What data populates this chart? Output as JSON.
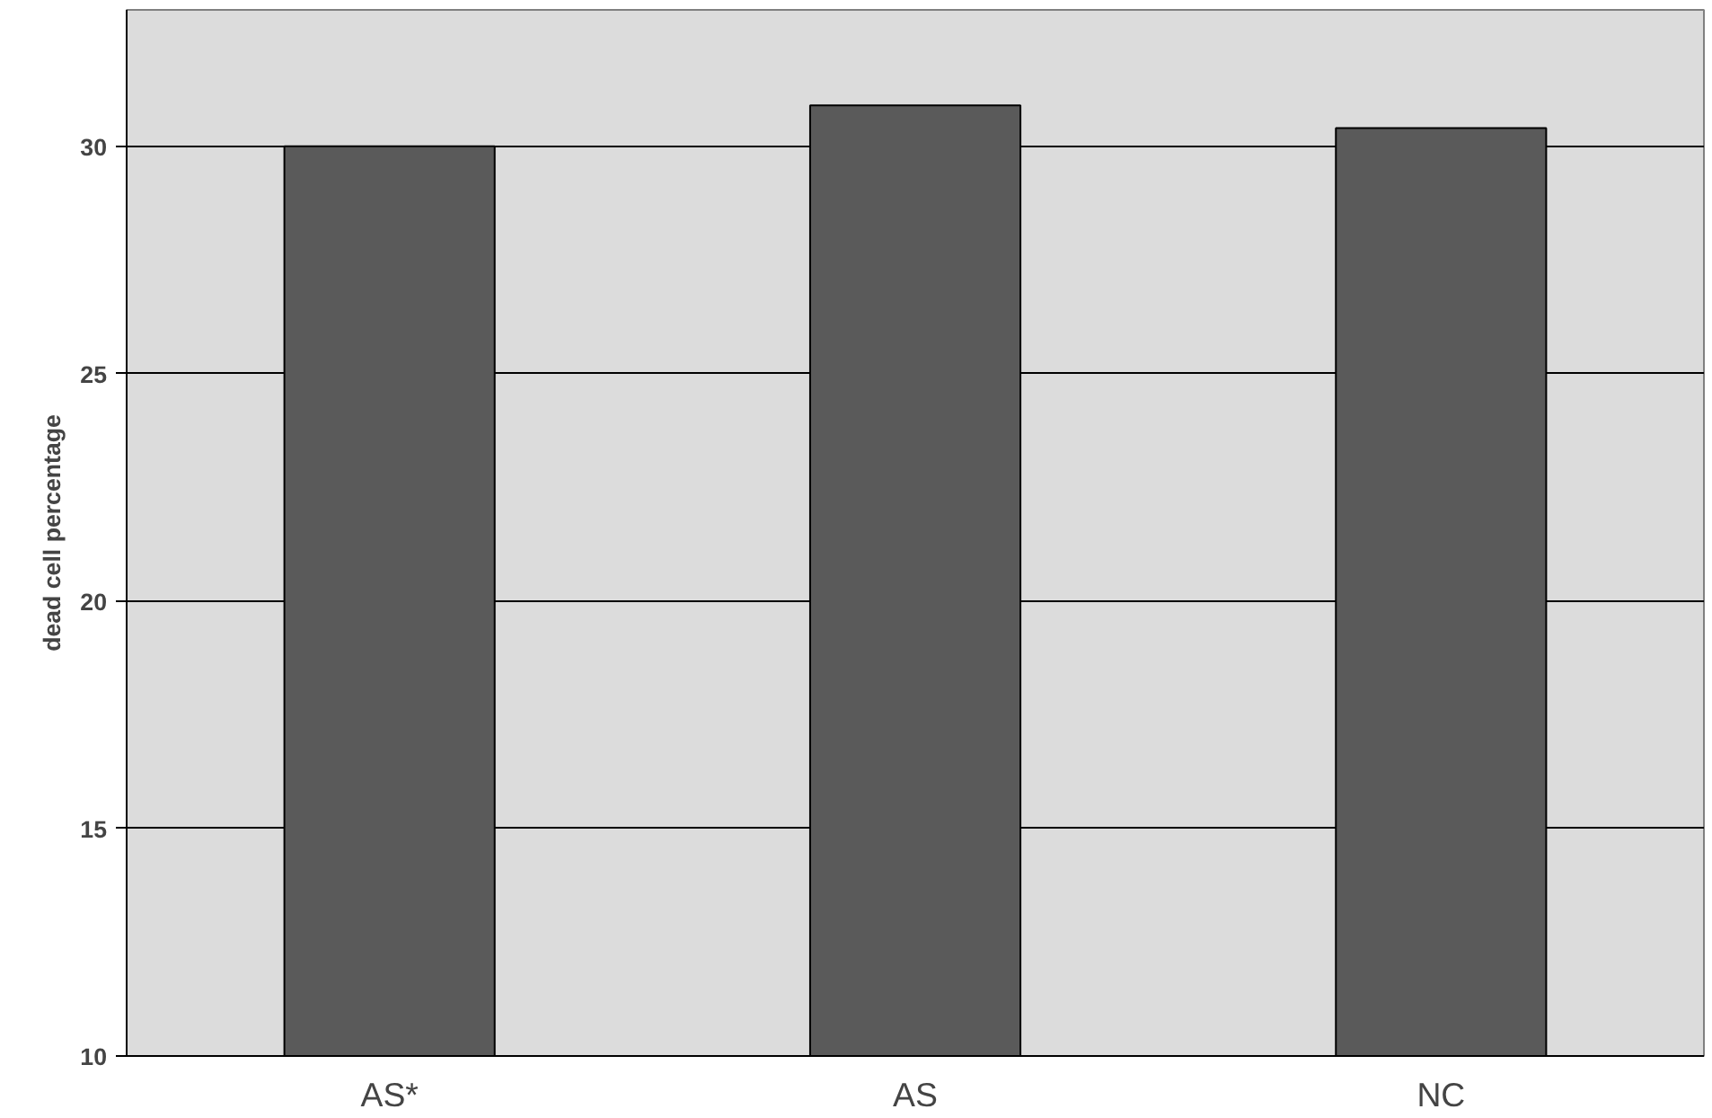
{
  "chart_data": {
    "type": "bar",
    "ylabel": "dead cell percentage",
    "categories": [
      "AS*",
      "AS",
      "NC"
    ],
    "values": [
      30.0,
      30.9,
      30.4
    ],
    "color": "#5a5a5a",
    "ylim": [
      10,
      33
    ],
    "yticks": [
      10,
      15,
      20,
      25,
      30
    ],
    "grid": "y"
  }
}
